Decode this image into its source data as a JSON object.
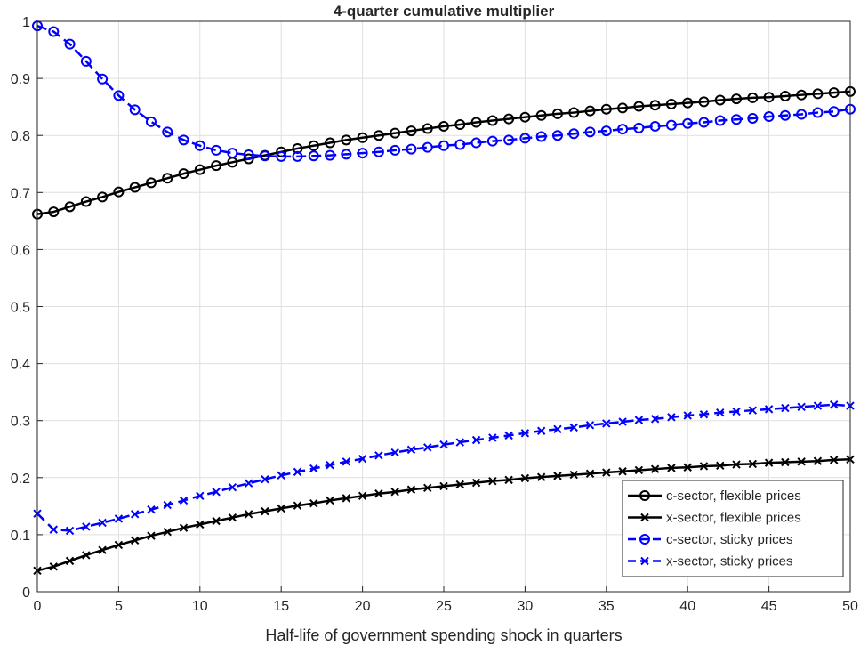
{
  "chart_data": {
    "type": "line",
    "title": "4-quarter cumulative multiplier",
    "xlabel": "Half-life of government spending shock in quarters",
    "ylabel": "",
    "xlim": [
      0,
      50
    ],
    "ylim": [
      0,
      1
    ],
    "xticks": [
      "0",
      "5",
      "10",
      "15",
      "20",
      "25",
      "30",
      "35",
      "40",
      "45",
      "50"
    ],
    "yticks": [
      "0",
      "0.1",
      "0.2",
      "0.3",
      "0.4",
      "0.5",
      "0.6",
      "0.7",
      "0.8",
      "0.9",
      "1"
    ],
    "grid": true,
    "legend_position": "bottom-right",
    "x": [
      0,
      1,
      2,
      3,
      4,
      5,
      6,
      7,
      8,
      9,
      10,
      11,
      12,
      13,
      14,
      15,
      16,
      17,
      18,
      19,
      20,
      21,
      22,
      23,
      24,
      25,
      26,
      27,
      28,
      29,
      30,
      31,
      32,
      33,
      34,
      35,
      36,
      37,
      38,
      39,
      40,
      41,
      42,
      43,
      44,
      45,
      46,
      47,
      48,
      49,
      50
    ],
    "series": [
      {
        "name": "c-sector, flexible prices",
        "color": "#000000",
        "marker": "circle",
        "dash": "solid",
        "values": [
          0.662,
          0.666,
          0.675,
          0.684,
          0.692,
          0.701,
          0.709,
          0.717,
          0.725,
          0.733,
          0.74,
          0.747,
          0.753,
          0.759,
          0.765,
          0.771,
          0.777,
          0.782,
          0.787,
          0.792,
          0.796,
          0.8,
          0.804,
          0.808,
          0.812,
          0.816,
          0.819,
          0.823,
          0.826,
          0.829,
          0.832,
          0.835,
          0.838,
          0.84,
          0.843,
          0.846,
          0.848,
          0.851,
          0.853,
          0.855,
          0.857,
          0.859,
          0.862,
          0.864,
          0.866,
          0.867,
          0.869,
          0.871,
          0.873,
          0.875,
          0.877
        ]
      },
      {
        "name": "x-sector, flexible prices",
        "color": "#000000",
        "marker": "x",
        "dash": "solid",
        "values": [
          0.037,
          0.044,
          0.054,
          0.064,
          0.073,
          0.082,
          0.09,
          0.098,
          0.105,
          0.112,
          0.118,
          0.124,
          0.13,
          0.136,
          0.141,
          0.146,
          0.151,
          0.155,
          0.16,
          0.164,
          0.168,
          0.172,
          0.175,
          0.179,
          0.182,
          0.185,
          0.188,
          0.191,
          0.194,
          0.196,
          0.199,
          0.201,
          0.203,
          0.205,
          0.207,
          0.209,
          0.211,
          0.213,
          0.215,
          0.217,
          0.218,
          0.22,
          0.221,
          0.223,
          0.224,
          0.226,
          0.227,
          0.228,
          0.229,
          0.231,
          0.232
        ]
      },
      {
        "name": "c-sector, sticky prices",
        "color": "#0000ff",
        "marker": "circle",
        "dash": "dashed",
        "values": [
          0.992,
          0.982,
          0.96,
          0.93,
          0.899,
          0.87,
          0.845,
          0.824,
          0.806,
          0.792,
          0.782,
          0.774,
          0.769,
          0.766,
          0.764,
          0.763,
          0.763,
          0.764,
          0.765,
          0.767,
          0.769,
          0.771,
          0.774,
          0.776,
          0.779,
          0.782,
          0.784,
          0.787,
          0.79,
          0.792,
          0.795,
          0.798,
          0.8,
          0.803,
          0.806,
          0.808,
          0.811,
          0.813,
          0.816,
          0.818,
          0.821,
          0.823,
          0.826,
          0.828,
          0.83,
          0.833,
          0.835,
          0.837,
          0.84,
          0.842,
          0.846
        ]
      },
      {
        "name": "x-sector, sticky prices",
        "color": "#0000ff",
        "marker": "x",
        "dash": "dashed",
        "values": [
          0.137,
          0.109,
          0.107,
          0.114,
          0.121,
          0.128,
          0.136,
          0.144,
          0.152,
          0.16,
          0.168,
          0.175,
          0.183,
          0.19,
          0.197,
          0.204,
          0.21,
          0.216,
          0.222,
          0.228,
          0.233,
          0.239,
          0.244,
          0.249,
          0.253,
          0.258,
          0.262,
          0.266,
          0.27,
          0.274,
          0.278,
          0.282,
          0.285,
          0.288,
          0.292,
          0.295,
          0.298,
          0.301,
          0.303,
          0.306,
          0.309,
          0.311,
          0.314,
          0.316,
          0.318,
          0.32,
          0.322,
          0.324,
          0.326,
          0.328,
          0.326
        ]
      }
    ]
  }
}
